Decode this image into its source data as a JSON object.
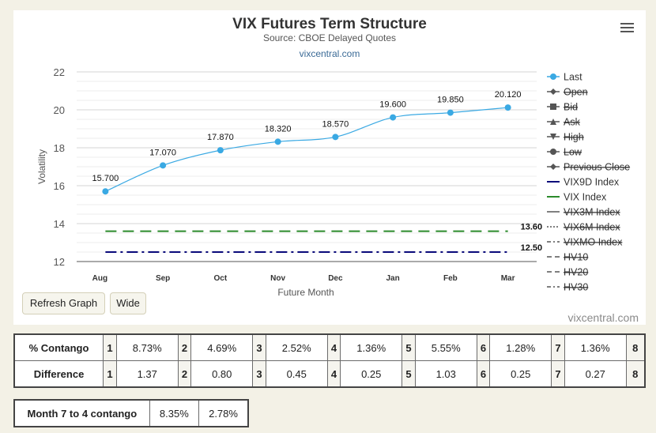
{
  "chart": {
    "title": "VIX Futures Term Structure",
    "subtitle": "Source: CBOE Delayed Quotes",
    "site": "vixcentral.com",
    "menu_icon": "hamburger-menu-icon"
  },
  "chart_data": {
    "type": "line",
    "categories": [
      "Aug",
      "Sep",
      "Oct",
      "Nov",
      "Dec",
      "Jan",
      "Feb",
      "Mar"
    ],
    "series": [
      {
        "name": "Last",
        "values": [
          15.7,
          17.07,
          17.87,
          18.32,
          18.57,
          19.6,
          19.85,
          20.12
        ],
        "labels": [
          "15.700",
          "17.070",
          "17.870",
          "18.320",
          "18.570",
          "19.600",
          "19.850",
          "20.120"
        ],
        "color": "#3aa9e3"
      },
      {
        "name": "VIX Index",
        "values": [
          13.6,
          13.6,
          13.6,
          13.6,
          13.6,
          13.6,
          13.6,
          13.6
        ],
        "end_label": "13.60",
        "color": "#2b8a2b",
        "dash": "long-dash"
      },
      {
        "name": "VIX9D Index",
        "values": [
          12.5,
          12.5,
          12.5,
          12.5,
          12.5,
          12.5,
          12.5,
          12.5
        ],
        "end_label": "12.50",
        "color": "#0a0a7a",
        "dash": "dash-dot"
      }
    ],
    "xlabel": "Future Month",
    "ylabel": "Volatility",
    "ylim": [
      12,
      22
    ],
    "yticks": [
      "12",
      "14",
      "16",
      "18",
      "20",
      "22"
    ],
    "grid": true,
    "legend_position": "right",
    "legend": [
      {
        "label": "Last",
        "marker": "circle",
        "color": "#3aa9e3",
        "disabled": false
      },
      {
        "label": "Open",
        "marker": "diamond",
        "color": "#777",
        "disabled": true
      },
      {
        "label": "Bid",
        "marker": "square",
        "color": "#777",
        "disabled": true
      },
      {
        "label": "Ask",
        "marker": "triangle",
        "color": "#777",
        "disabled": true
      },
      {
        "label": "High",
        "marker": "triangle-down",
        "color": "#777",
        "disabled": true
      },
      {
        "label": "Low",
        "marker": "circle",
        "color": "#777",
        "disabled": true
      },
      {
        "label": "Previous Close",
        "marker": "diamond",
        "color": "#777",
        "disabled": true
      },
      {
        "label": "VIX9D Index",
        "marker": "line",
        "color": "#0a0a7a",
        "disabled": false
      },
      {
        "label": "VIX Index",
        "marker": "line",
        "color": "#2b8a2b",
        "disabled": false
      },
      {
        "label": "VIX3M Index",
        "marker": "line",
        "color": "#777",
        "disabled": true
      },
      {
        "label": "VIX6M Index",
        "marker": "dotted",
        "color": "#777",
        "disabled": true
      },
      {
        "label": "VIXMO Index",
        "marker": "dashdot",
        "color": "#777",
        "disabled": true
      },
      {
        "label": "HV10",
        "marker": "dash",
        "color": "#777",
        "disabled": true
      },
      {
        "label": "HV20",
        "marker": "dash",
        "color": "#777",
        "disabled": true
      },
      {
        "label": "HV30",
        "marker": "dashdot",
        "color": "#777",
        "disabled": true
      }
    ]
  },
  "buttons": {
    "refresh": "Refresh Graph",
    "wide": "Wide"
  },
  "contango_table": {
    "rows": [
      {
        "label": "% Contango",
        "cells": [
          "1",
          "8.73%",
          "2",
          "4.69%",
          "3",
          "2.52%",
          "4",
          "1.36%",
          "5",
          "5.55%",
          "6",
          "1.28%",
          "7",
          "1.36%",
          "8"
        ]
      },
      {
        "label": "Difference",
        "cells": [
          "1",
          "1.37",
          "2",
          "0.80",
          "3",
          "0.45",
          "4",
          "0.25",
          "5",
          "1.03",
          "6",
          "0.25",
          "7",
          "0.27",
          "8"
        ]
      }
    ]
  },
  "month_table": {
    "label": "Month 7 to 4 contango",
    "values": [
      "8.35%",
      "2.78%"
    ]
  }
}
